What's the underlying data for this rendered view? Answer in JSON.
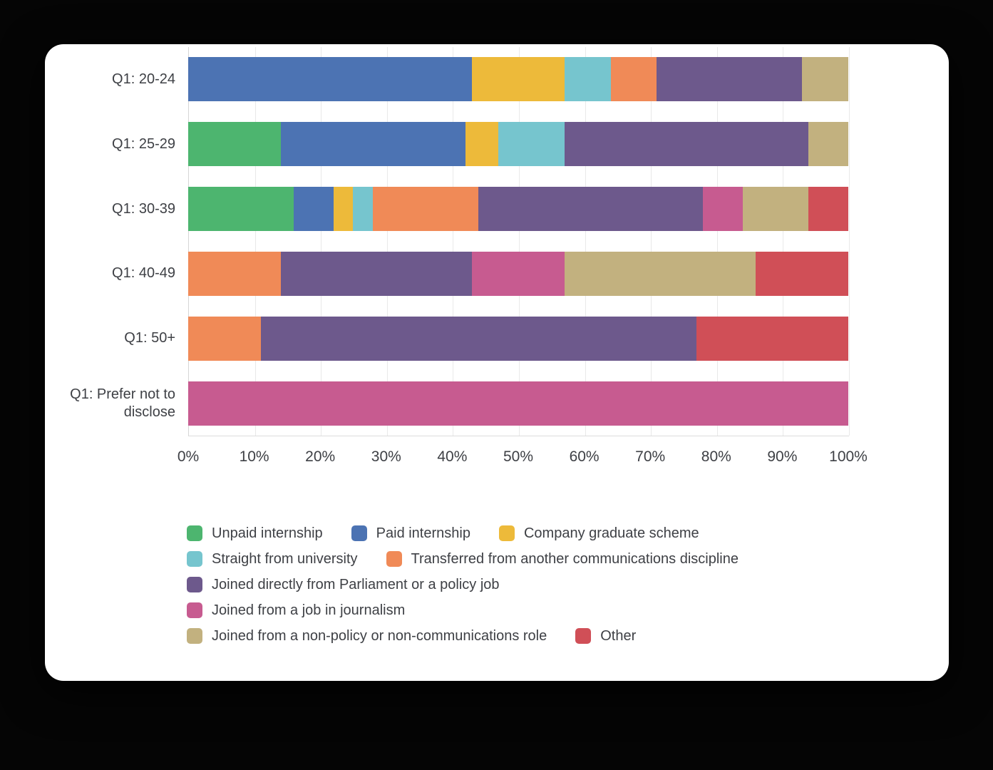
{
  "chart_data": {
    "type": "bar",
    "orientation": "horizontal",
    "stacked": true,
    "units": "percent",
    "grid": "vertical",
    "legend_position": "bottom",
    "xlim": [
      0,
      100
    ],
    "x_ticks": [
      "0%",
      "10%",
      "20%",
      "30%",
      "40%",
      "50%",
      "60%",
      "70%",
      "80%",
      "90%",
      "100%"
    ],
    "categories": [
      "Q1: 20-24",
      "Q1: 25-29",
      "Q1: 30-39",
      "Q1: 40-49",
      "Q1: 50+",
      "Q1: Prefer not to disclose"
    ],
    "series": [
      {
        "name": "Unpaid internship",
        "color": "#4db56f",
        "values": [
          0,
          14,
          16,
          0,
          0,
          0
        ]
      },
      {
        "name": "Paid internship",
        "color": "#4c73b3",
        "values": [
          43,
          28,
          6,
          0,
          0,
          0
        ]
      },
      {
        "name": "Company graduate scheme",
        "color": "#edba3a",
        "values": [
          14,
          5,
          3,
          0,
          0,
          0
        ]
      },
      {
        "name": "Straight from university",
        "color": "#76c5ce",
        "values": [
          7,
          10,
          3,
          0,
          0,
          0
        ]
      },
      {
        "name": "Transferred from another communications discipline",
        "color": "#f08a57",
        "values": [
          7,
          0,
          16,
          14,
          11,
          0
        ]
      },
      {
        "name": "Joined directly from Parliament or a policy job",
        "color": "#6d598c",
        "values": [
          22,
          37,
          34,
          29,
          66,
          0
        ]
      },
      {
        "name": "Joined from a job in journalism",
        "color": "#c75b90",
        "values": [
          0,
          0,
          6,
          14,
          0,
          100
        ]
      },
      {
        "name": "Joined from a non-policy or non-communications role",
        "color": "#c2b17f",
        "values": [
          7,
          6,
          10,
          29,
          0,
          0
        ]
      },
      {
        "name": "Other",
        "color": "#d04f57",
        "values": [
          0,
          0,
          6,
          14,
          23,
          0
        ]
      }
    ]
  }
}
